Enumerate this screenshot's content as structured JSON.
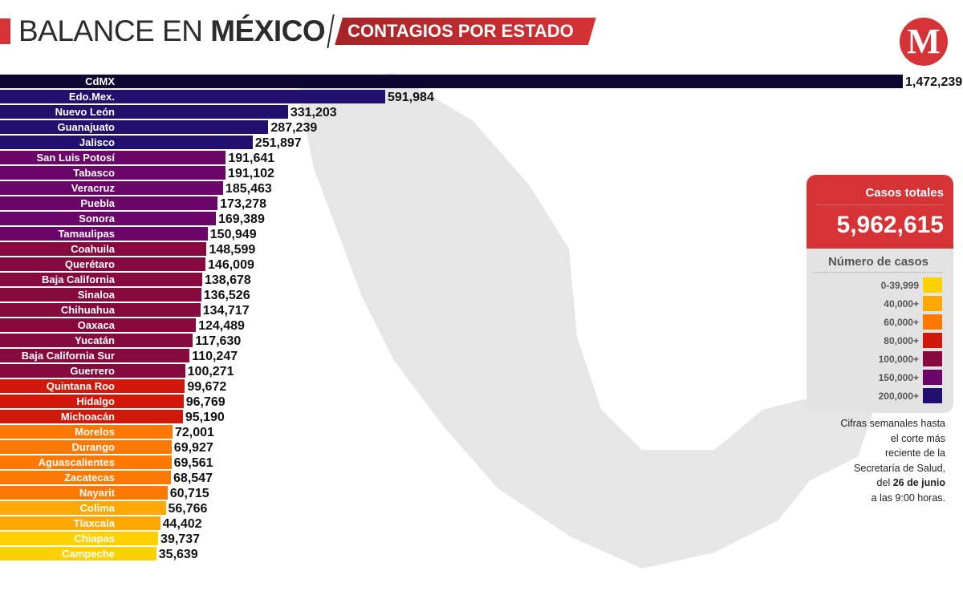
{
  "header": {
    "title_light": "BALANCE EN ",
    "title_bold": "MÉXICO",
    "subtitle": "CONTAGIOS POR ESTADO",
    "logo_letter": "M"
  },
  "colors": {
    "cdmx": "#0d0630",
    "200k": "#21106e",
    "150k": "#6b0569",
    "100k": "#870a3e",
    "80k": "#d0180b",
    "60k": "#ff7900",
    "40k": "#ffa900",
    "0": "#ffd100",
    "accent": "#d63336"
  },
  "chart_data": {
    "type": "bar",
    "orientation": "horizontal",
    "categories": [
      "CdMX",
      "Edo.Mex.",
      "Nuevo León",
      "Guanajuato",
      "Jalisco",
      "San Luis Potosí",
      "Tabasco",
      "Veracruz",
      "Puebla",
      "Sonora",
      "Tamaulipas",
      "Coahuila",
      "Querétaro",
      "Baja California",
      "Sinaloa",
      "Chihuahua",
      "Oaxaca",
      "Yucatán",
      "Baja California Sur",
      "Guerrero",
      "Quintana Roo",
      "Hidalgo",
      "Michoacán",
      "Morelos",
      "Durango",
      "Aguascalientes",
      "Zacatecas",
      "Nayarit",
      "Colima",
      "Tlaxcala",
      "Chiapas",
      "Campeche"
    ],
    "values": [
      1472239,
      591984,
      331203,
      287239,
      251897,
      191641,
      191102,
      185463,
      173278,
      169389,
      150949,
      148599,
      146009,
      138678,
      136526,
      134717,
      124489,
      117630,
      110247,
      100271,
      99672,
      96769,
      95190,
      72001,
      69927,
      69561,
      68547,
      60715,
      56766,
      44402,
      39737,
      35639
    ],
    "labels": [
      "1,472,239",
      "591,984",
      "331,203",
      "287,239",
      "251,897",
      "191,641",
      "191,102",
      "185,463",
      "173,278",
      "169,389",
      "150,949",
      "148,599",
      "146,009",
      "138,678",
      "136,526",
      "134,717",
      "124,489",
      "117,630",
      "110,247",
      "100,271",
      "99,672",
      "96,769",
      "95,190",
      "72,001",
      "69,927",
      "69,561",
      "68,547",
      "60,715",
      "56,766",
      "44,402",
      "39,737",
      "35,639"
    ]
  },
  "summary": {
    "total_label": "Casos totales",
    "total_value": "5,962,615"
  },
  "legend": {
    "title": "Número de casos",
    "items": [
      {
        "label": "0-39,999",
        "color": "#ffd100"
      },
      {
        "label": "40,000+",
        "color": "#ffa900"
      },
      {
        "label": "60,000+",
        "color": "#ff7900"
      },
      {
        "label": "80,000+",
        "color": "#d0180b"
      },
      {
        "label": "100,000+",
        "color": "#870a3e"
      },
      {
        "label": "150,000+",
        "color": "#6b0569"
      },
      {
        "label": "200,000+",
        "color": "#21106e"
      }
    ]
  },
  "note": {
    "l1": "Cifras semanales hasta",
    "l2": "el corte más",
    "l3": "reciente de la",
    "l4": "Secretaría de Salud,",
    "l5a": "del ",
    "l5b": "26  de junio",
    "l6": "a las 9:00 horas."
  }
}
